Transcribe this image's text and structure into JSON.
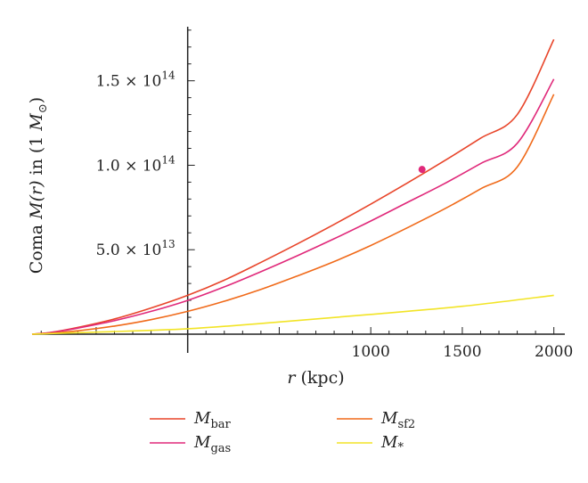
{
  "chart_data": {
    "type": "line",
    "xlabel": {
      "var": "r",
      "unit": " (kpc)"
    },
    "ylabel": {
      "pre": "Coma ",
      "var": "M(r)",
      "post": " in (1 ",
      "unit_var": "M",
      "unit_sub": "⊙",
      "close": ")"
    },
    "xlim": [
      -850,
      2060
    ],
    "ylim": [
      0,
      182000000000000.0
    ],
    "x_ticks": [
      {
        "value": 1000,
        "label": "1000"
      },
      {
        "value": 1500,
        "label": "1500"
      },
      {
        "value": 2000,
        "label": "2000"
      }
    ],
    "y_ticks": [
      {
        "value": 50000000000000.0,
        "mantissa": "5.0 × 10",
        "exponent": "13"
      },
      {
        "value": 100000000000000.0,
        "mantissa": "1.0 × 10",
        "exponent": "14"
      },
      {
        "value": 150000000000000.0,
        "mantissa": "1.5 × 10",
        "exponent": "14"
      }
    ],
    "series": [
      {
        "name": "M",
        "sub": "bar",
        "color": "#e8452a",
        "x": [
          -850,
          -750,
          -600,
          -400,
          -200,
          0,
          200,
          400,
          600,
          800,
          1000,
          1200,
          1400,
          1600,
          1800,
          2000
        ],
        "y": [
          0,
          1000000000000.0,
          4000000000000.0,
          9000000000000.0,
          15500000000000.0,
          23000000000000.0,
          32000000000000.0,
          42500000000000.0,
          53500000000000.0,
          65000000000000.0,
          77000000000000.0,
          89500000000000.0,
          102500000000000.0,
          116000000000000.0,
          130000000000000.0,
          174500000000000.0
        ]
      },
      {
        "name": "M",
        "sub": "gas",
        "color": "#e0297a",
        "x": [
          -850,
          -750,
          -600,
          -400,
          -200,
          0,
          200,
          400,
          600,
          800,
          1000,
          1200,
          1400,
          1600,
          1800,
          2000
        ],
        "y": [
          0,
          900000000000.0,
          3600000000000.0,
          8000000000000.0,
          13500000000000.0,
          20000000000000.0,
          28000000000000.0,
          37000000000000.0,
          46500000000000.0,
          56500000000000.0,
          67000000000000.0,
          78000000000000.0,
          89000000000000.0,
          101000000000000.0,
          113000000000000.0,
          151000000000000.0
        ]
      },
      {
        "name": "M",
        "sub": "sf2",
        "color": "#f06a1a",
        "x": [
          -850,
          -750,
          -600,
          -400,
          -200,
          0,
          200,
          400,
          600,
          800,
          1000,
          1200,
          1400,
          1600,
          1800,
          2000
        ],
        "y": [
          0,
          500000000000.0,
          2000000000000.0,
          4800000000000.0,
          8600000000000.0,
          13500000000000.0,
          19500000000000.0,
          26500000000000.0,
          34500000000000.0,
          43000000000000.0,
          52500000000000.0,
          63000000000000.0,
          74000000000000.0,
          86000000000000.0,
          99000000000000.0,
          142000000000000.0
        ]
      },
      {
        "name": "M",
        "sub": "*",
        "color": "#f2e426",
        "x": [
          -850,
          -500,
          0,
          500,
          1000,
          1500,
          2000
        ],
        "y": [
          0,
          1200000000000.0,
          3200000000000.0,
          7200000000000.0,
          11700000000000.0,
          16500000000000.0,
          23000000000000.0
        ]
      }
    ],
    "annotations": [
      {
        "type": "point",
        "x": 1280,
        "y": 97500000000000.0,
        "color": "#e0297a"
      }
    ],
    "legend_placement": "bottom",
    "grid": false
  }
}
